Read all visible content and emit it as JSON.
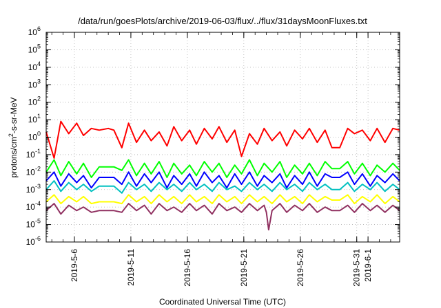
{
  "chart_data": {
    "type": "line",
    "title": "/data/run/goesPlots/archive/2019-06-03/flux/../flux/31daysMoonFluxes.txt",
    "xlabel": "Coordinated Universal Time (UTC)",
    "ylabel_parts": [
      "protons/cm",
      "2",
      "-s-sr-MeV"
    ],
    "yscale": "log",
    "ylim_exp": [
      -6,
      6
    ],
    "yticks": [
      {
        "base": "10",
        "exp": "6"
      },
      {
        "base": "10",
        "exp": "5"
      },
      {
        "base": "10",
        "exp": "4"
      },
      {
        "base": "10",
        "exp": "3"
      },
      {
        "base": "10",
        "exp": "2"
      },
      {
        "base": "10",
        "exp": "1"
      },
      {
        "base": "10",
        "exp": "0"
      },
      {
        "base": "10",
        "exp": "-1"
      },
      {
        "base": "10",
        "exp": "-2"
      },
      {
        "base": "10",
        "exp": "-3"
      },
      {
        "base": "10",
        "exp": "-4"
      },
      {
        "base": "10",
        "exp": "-5"
      },
      {
        "base": "10",
        "exp": "-6"
      }
    ],
    "xlim_days": [
      3.5,
      34.8
    ],
    "xticks": [
      {
        "label": "2019-5-6",
        "day": 6
      },
      {
        "label": "2019-5-11",
        "day": 11
      },
      {
        "label": "2019-5-16",
        "day": 16
      },
      {
        "label": "2019-5-21",
        "day": 21
      },
      {
        "label": "2019-5-26",
        "day": 26
      },
      {
        "label": "2019-5-31",
        "day": 31
      },
      {
        "label": "2019-6-1",
        "day": 32
      }
    ],
    "grid": true,
    "series": [
      {
        "color": "#ff0000",
        "x": [
          3.5,
          4.2,
          4.8,
          5.5,
          6.2,
          6.8,
          7.5,
          8.2,
          9.0,
          9.5,
          10.2,
          10.8,
          11.5,
          12.2,
          12.8,
          13.5,
          14.2,
          14.8,
          15.5,
          16.2,
          16.8,
          17.5,
          18.2,
          18.8,
          19.5,
          20.2,
          20.8,
          21.5,
          22.2,
          22.8,
          23.5,
          24.2,
          24.8,
          25.5,
          26.2,
          26.8,
          27.5,
          28.2,
          28.8,
          29.5,
          30.2,
          30.8,
          31.5,
          32.2,
          32.8,
          33.5,
          34.2,
          34.8
        ],
        "y_exp": [
          0.3,
          -1.2,
          0.9,
          0.2,
          0.8,
          0.1,
          0.5,
          0.4,
          0.5,
          0.4,
          -0.6,
          0.8,
          -0.3,
          0.4,
          -0.2,
          0.3,
          -0.5,
          0.6,
          -0.2,
          0.4,
          -0.4,
          0.5,
          -0.1,
          0.6,
          -0.3,
          0.4,
          -1.1,
          0.2,
          -0.4,
          0.5,
          -0.2,
          0.3,
          -0.5,
          0.4,
          -0.1,
          0.5,
          -0.3,
          0.4,
          -0.6,
          -0.6,
          0.5,
          0.2,
          0.4,
          -0.2,
          0.5,
          -0.3,
          0.5,
          0.4
        ]
      },
      {
        "color": "#00ff00",
        "x": [
          3.5,
          4.2,
          4.8,
          5.5,
          6.2,
          6.8,
          7.5,
          8.2,
          9.0,
          9.5,
          10.2,
          10.8,
          11.5,
          12.2,
          12.8,
          13.5,
          14.2,
          14.8,
          15.5,
          16.2,
          16.8,
          17.5,
          18.2,
          18.8,
          19.5,
          20.2,
          20.8,
          21.5,
          22.2,
          22.8,
          23.5,
          24.2,
          24.8,
          25.5,
          26.2,
          26.8,
          27.5,
          28.2,
          28.8,
          29.5,
          30.2,
          30.8,
          31.5,
          32.2,
          32.8,
          33.5,
          34.2,
          34.8
        ],
        "y_exp": [
          -2.0,
          -1.3,
          -2.2,
          -1.4,
          -2.1,
          -1.5,
          -2.3,
          -1.7,
          -1.7,
          -1.7,
          -1.9,
          -1.3,
          -2.2,
          -1.5,
          -2.1,
          -1.4,
          -2.3,
          -1.5,
          -2.1,
          -1.6,
          -2.2,
          -1.4,
          -2.0,
          -1.5,
          -2.3,
          -1.6,
          -2.1,
          -1.3,
          -2.2,
          -1.5,
          -2.0,
          -1.4,
          -2.3,
          -1.6,
          -2.1,
          -1.5,
          -2.2,
          -1.4,
          -1.8,
          -1.8,
          -1.4,
          -2.1,
          -1.5,
          -2.2,
          -1.6,
          -2.0,
          -1.5,
          -1.9
        ]
      },
      {
        "color": "#00c0c0",
        "x": [
          3.5,
          4.2,
          4.8,
          5.5,
          6.2,
          6.8,
          7.5,
          8.2,
          9.0,
          9.5,
          10.2,
          10.8,
          11.5,
          12.2,
          12.8,
          13.5,
          14.2,
          14.8,
          15.5,
          16.2,
          16.8,
          17.5,
          18.2,
          18.8,
          19.5,
          20.2,
          20.8,
          21.5,
          22.2,
          22.8,
          23.5,
          24.2,
          24.8,
          25.5,
          26.2,
          26.8,
          27.5,
          28.2,
          28.8,
          29.5,
          30.2,
          30.8,
          31.5,
          32.2,
          32.8,
          33.5,
          34.2,
          34.8
        ],
        "y_exp": [
          -3.0,
          -2.5,
          -3.1,
          -2.6,
          -3.0,
          -2.7,
          -3.1,
          -2.8,
          -2.8,
          -2.8,
          -3.2,
          -2.6,
          -3.0,
          -2.7,
          -3.1,
          -2.6,
          -3.0,
          -2.7,
          -3.1,
          -2.6,
          -3.0,
          -2.7,
          -3.1,
          -2.6,
          -3.0,
          -2.8,
          -3.1,
          -2.6,
          -3.0,
          -2.7,
          -3.1,
          -2.6,
          -3.0,
          -2.7,
          -3.1,
          -2.6,
          -3.0,
          -2.7,
          -3.0,
          -3.0,
          -2.6,
          -3.1,
          -2.7,
          -3.0,
          -2.6,
          -3.1,
          -2.7,
          -3.0
        ]
      },
      {
        "color": "#0000ff",
        "x": [
          3.5,
          4.2,
          4.8,
          5.5,
          6.2,
          6.8,
          7.5,
          8.2,
          9.0,
          9.5,
          10.2,
          10.8,
          11.5,
          12.2,
          12.8,
          13.5,
          14.2,
          14.8,
          15.5,
          16.2,
          16.8,
          17.5,
          18.2,
          18.8,
          19.5,
          20.2,
          20.8,
          21.5,
          22.2,
          22.8,
          23.5,
          24.2,
          24.8,
          25.5,
          26.2,
          26.8,
          27.5,
          28.2,
          28.8,
          29.5,
          30.2,
          30.8,
          31.5,
          32.2,
          32.8,
          33.5,
          34.2,
          34.8
        ],
        "y_exp": [
          -2.5,
          -2.0,
          -2.8,
          -2.1,
          -2.6,
          -2.2,
          -2.9,
          -2.3,
          -2.3,
          -2.3,
          -2.7,
          -2.0,
          -2.8,
          -2.1,
          -2.6,
          -2.0,
          -2.9,
          -2.2,
          -2.7,
          -2.1,
          -2.8,
          -2.0,
          -2.6,
          -2.2,
          -2.9,
          -2.1,
          -2.7,
          -2.0,
          -2.8,
          -2.2,
          -2.6,
          -2.1,
          -2.9,
          -2.2,
          -2.7,
          -2.0,
          -2.8,
          -2.1,
          -2.3,
          -2.3,
          -2.0,
          -2.7,
          -2.1,
          -2.8,
          -2.2,
          -2.6,
          -2.1,
          -2.5
        ]
      },
      {
        "color": "#ffff00",
        "x": [
          3.5,
          4.2,
          4.8,
          5.5,
          6.2,
          6.8,
          7.5,
          8.2,
          9.0,
          9.5,
          10.2,
          10.8,
          11.5,
          12.2,
          12.8,
          13.5,
          14.2,
          14.8,
          15.5,
          16.2,
          16.8,
          17.5,
          18.2,
          18.8,
          19.5,
          20.2,
          20.8,
          21.5,
          22.2,
          22.8,
          23.5,
          24.2,
          24.8,
          25.5,
          26.2,
          26.8,
          27.5,
          28.2,
          28.8,
          29.5,
          30.2,
          30.8,
          31.5,
          32.2,
          32.8,
          33.5,
          34.2,
          34.8
        ],
        "y_exp": [
          -3.7,
          -3.3,
          -3.8,
          -3.4,
          -3.7,
          -3.4,
          -3.8,
          -3.7,
          -3.7,
          -3.7,
          -3.8,
          -3.3,
          -3.7,
          -3.4,
          -3.8,
          -3.3,
          -3.7,
          -3.4,
          -3.8,
          -3.3,
          -3.7,
          -3.4,
          -3.8,
          -3.3,
          -3.7,
          -3.4,
          -3.8,
          -3.3,
          -3.7,
          -3.4,
          -3.8,
          -3.3,
          -3.7,
          -3.4,
          -3.8,
          -3.3,
          -3.7,
          -3.4,
          -3.6,
          -3.6,
          -3.3,
          -3.8,
          -3.4,
          -3.7,
          -3.3,
          -3.8,
          -3.4,
          -3.7
        ]
      },
      {
        "color": "#903060",
        "x": [
          3.5,
          4.2,
          4.8,
          5.5,
          6.2,
          6.8,
          7.5,
          8.2,
          9.0,
          9.5,
          10.2,
          10.8,
          11.5,
          12.2,
          12.8,
          13.5,
          14.2,
          14.8,
          15.5,
          16.2,
          16.8,
          17.5,
          18.2,
          18.8,
          19.5,
          20.2,
          20.8,
          21.5,
          22.2,
          22.8,
          23.0,
          23.2,
          23.5,
          24.2,
          24.8,
          25.5,
          26.2,
          26.8,
          27.5,
          28.2,
          28.8,
          29.5,
          30.2,
          30.8,
          31.5,
          32.2,
          32.8,
          33.5,
          34.2,
          34.8
        ],
        "y_exp": [
          -4.2,
          -3.8,
          -4.4,
          -3.9,
          -4.2,
          -4.0,
          -4.3,
          -4.2,
          -4.2,
          -4.2,
          -4.3,
          -3.8,
          -4.2,
          -3.9,
          -4.4,
          -3.8,
          -4.2,
          -4.0,
          -4.3,
          -3.8,
          -4.2,
          -3.9,
          -4.4,
          -3.8,
          -4.2,
          -4.0,
          -4.3,
          -3.8,
          -4.2,
          -3.9,
          -4.3,
          -5.3,
          -4.2,
          -3.8,
          -4.3,
          -3.9,
          -4.2,
          -3.8,
          -4.3,
          -4.0,
          -4.2,
          -4.2,
          -3.9,
          -4.3,
          -3.8,
          -4.2,
          -3.9,
          -4.3,
          -3.9,
          -4.2
        ]
      }
    ]
  }
}
